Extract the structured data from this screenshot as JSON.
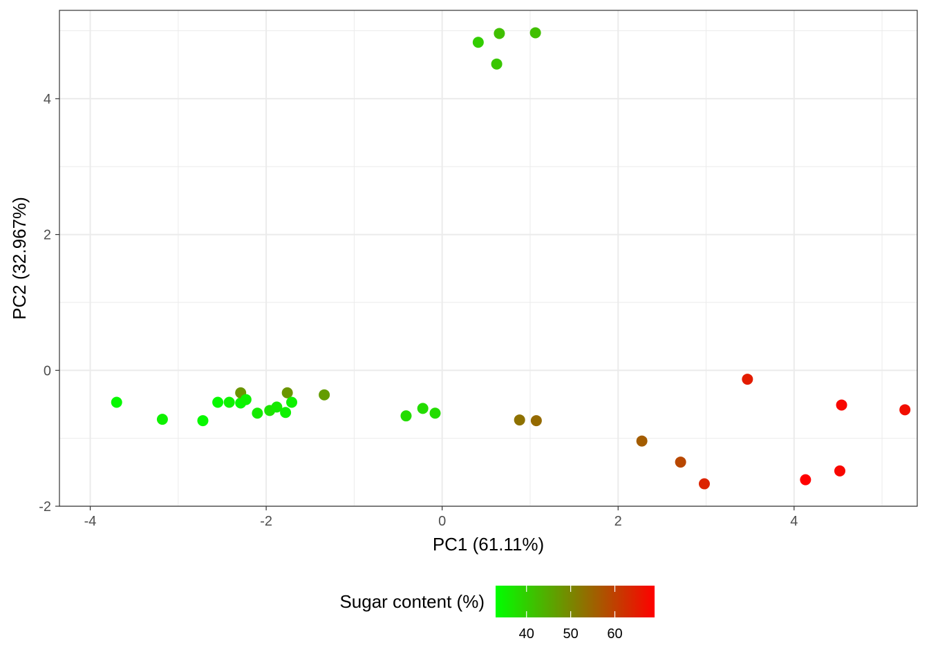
{
  "chart_data": {
    "type": "scatter",
    "xlabel": "PC1 (61.11%)",
    "ylabel": "PC2 (32.967%)",
    "xlim": [
      -4.35,
      5.4
    ],
    "ylim": [
      -2.0,
      5.3
    ],
    "x_ticks": [
      -4,
      -2,
      0,
      2,
      4
    ],
    "x_tick_labels": [
      "-4",
      "-2",
      "0",
      "2",
      "4"
    ],
    "y_ticks": [
      -2,
      0,
      2,
      4
    ],
    "y_tick_labels": [
      "-2",
      "0",
      "2",
      "4"
    ],
    "grid": true,
    "color_scale": {
      "title": "Sugar content (%)",
      "low_color": "#00ff00",
      "high_color": "#ff0000",
      "range": [
        33,
        69
      ],
      "ticks": [
        40,
        50,
        60
      ],
      "tick_labels": [
        "40",
        "50",
        "60"
      ],
      "placement": "bottom"
    },
    "points": [
      {
        "x": -3.7,
        "y": -0.47,
        "sugar": 34
      },
      {
        "x": -3.18,
        "y": -0.72,
        "sugar": 35
      },
      {
        "x": -2.72,
        "y": -0.74,
        "sugar": 34
      },
      {
        "x": -2.55,
        "y": -0.47,
        "sugar": 34
      },
      {
        "x": -2.42,
        "y": -0.47,
        "sugar": 35
      },
      {
        "x": -2.29,
        "y": -0.48,
        "sugar": 34
      },
      {
        "x": -2.29,
        "y": -0.33,
        "sugar": 48
      },
      {
        "x": -2.23,
        "y": -0.43,
        "sugar": 35
      },
      {
        "x": -2.1,
        "y": -0.63,
        "sugar": 36
      },
      {
        "x": -1.96,
        "y": -0.59,
        "sugar": 37
      },
      {
        "x": -1.88,
        "y": -0.54,
        "sugar": 36
      },
      {
        "x": -1.78,
        "y": -0.62,
        "sugar": 35
      },
      {
        "x": -1.76,
        "y": -0.33,
        "sugar": 48
      },
      {
        "x": -1.71,
        "y": -0.47,
        "sugar": 35
      },
      {
        "x": -1.34,
        "y": -0.36,
        "sugar": 47
      },
      {
        "x": -0.41,
        "y": -0.67,
        "sugar": 38
      },
      {
        "x": -0.22,
        "y": -0.56,
        "sugar": 38
      },
      {
        "x": -0.08,
        "y": -0.63,
        "sugar": 38
      },
      {
        "x": 0.41,
        "y": 4.83,
        "sugar": 40
      },
      {
        "x": 0.62,
        "y": 4.51,
        "sugar": 41
      },
      {
        "x": 0.65,
        "y": 4.96,
        "sugar": 42
      },
      {
        "x": 1.06,
        "y": 4.97,
        "sugar": 42
      },
      {
        "x": 0.88,
        "y": -0.73,
        "sugar": 53
      },
      {
        "x": 1.07,
        "y": -0.74,
        "sugar": 54
      },
      {
        "x": 2.27,
        "y": -1.04,
        "sugar": 56
      },
      {
        "x": 2.71,
        "y": -1.35,
        "sugar": 59
      },
      {
        "x": 2.98,
        "y": -1.67,
        "sugar": 64
      },
      {
        "x": 3.47,
        "y": -0.13,
        "sugar": 65
      },
      {
        "x": 4.13,
        "y": -1.61,
        "sugar": 69
      },
      {
        "x": 4.52,
        "y": -1.48,
        "sugar": 68
      },
      {
        "x": 4.54,
        "y": -0.51,
        "sugar": 68
      },
      {
        "x": 5.26,
        "y": -0.58,
        "sugar": 67
      }
    ]
  }
}
